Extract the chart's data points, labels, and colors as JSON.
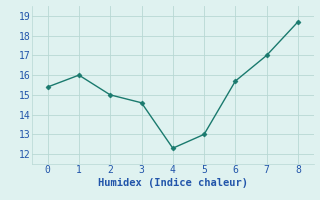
{
  "x": [
    0,
    1,
    2,
    3,
    4,
    5,
    6,
    7,
    8
  ],
  "y": [
    15.4,
    16.0,
    15.0,
    14.6,
    12.3,
    13.0,
    15.7,
    17.0,
    18.7
  ],
  "xlabel": "Humidex (Indice chaleur)",
  "ylim": [
    11.5,
    19.5
  ],
  "xlim": [
    -0.5,
    8.5
  ],
  "yticks": [
    12,
    13,
    14,
    15,
    16,
    17,
    18,
    19
  ],
  "xticks": [
    0,
    1,
    2,
    3,
    4,
    5,
    6,
    7,
    8
  ],
  "line_color": "#1a7a6e",
  "marker_color": "#1a7a6e",
  "bg_color": "#dff2f0",
  "grid_color": "#b8d8d4",
  "font_color": "#2255aa",
  "xlabel_fontsize": 7.5,
  "tick_fontsize": 7
}
